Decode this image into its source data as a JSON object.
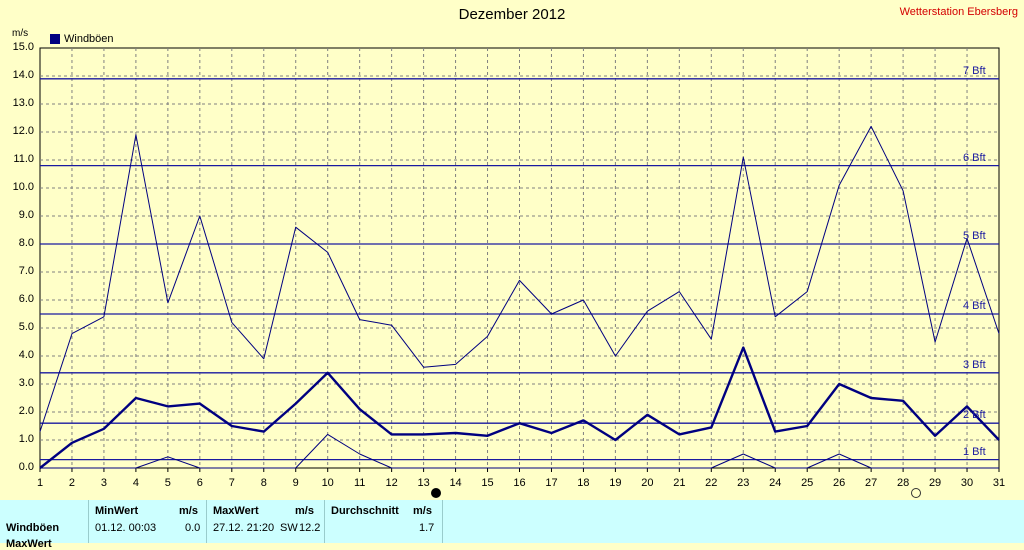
{
  "title": "Dezember 2012",
  "station": "Wetterstation Ebersberg",
  "unit_label": "m/s",
  "legend": "Windböen",
  "colors": {
    "main": "#000080",
    "grid": "#808080",
    "background": "#ffffc8",
    "stats_bg": "#ccffff",
    "station": "#d40000"
  },
  "chart_data": {
    "type": "line",
    "x": [
      1,
      2,
      3,
      4,
      5,
      6,
      7,
      8,
      9,
      10,
      11,
      12,
      13,
      14,
      15,
      16,
      17,
      18,
      19,
      20,
      21,
      22,
      23,
      24,
      25,
      26,
      27,
      28,
      29,
      30,
      31
    ],
    "ylim": [
      0,
      15
    ],
    "yticks": [
      "0.0",
      "1.0",
      "2.0",
      "3.0",
      "4.0",
      "5.0",
      "6.0",
      "7.0",
      "8.0",
      "9.0",
      "10.0",
      "11.0",
      "12.0",
      "13.0",
      "14.0",
      "15.0"
    ],
    "grid": true,
    "legend_position": "top-left",
    "series": [
      {
        "name": "Windböen",
        "role": "avg",
        "values": [
          0.0,
          0.9,
          1.4,
          2.5,
          2.2,
          2.3,
          1.5,
          1.3,
          2.3,
          3.4,
          2.1,
          1.2,
          1.2,
          1.25,
          1.15,
          1.6,
          1.25,
          1.7,
          1.0,
          1.9,
          1.2,
          1.45,
          4.3,
          1.3,
          1.5,
          3.0,
          2.5,
          2.4,
          1.15,
          2.2,
          1.0
        ]
      },
      {
        "role": "max",
        "values": [
          1.3,
          4.8,
          5.4,
          11.9,
          5.9,
          9.0,
          5.2,
          3.9,
          8.6,
          7.7,
          5.3,
          5.1,
          3.6,
          3.7,
          4.7,
          6.7,
          5.5,
          6.0,
          4.0,
          5.6,
          6.3,
          4.6,
          11.1,
          5.4,
          6.3,
          10.1,
          12.2,
          9.9,
          4.5,
          8.2,
          4.8
        ]
      },
      {
        "role": "min",
        "values": [
          0,
          0,
          0,
          0,
          0.4,
          0,
          0,
          0,
          0,
          1.2,
          0.5,
          0,
          0,
          0,
          0,
          0,
          0,
          0,
          0,
          0,
          0,
          0,
          0.5,
          0,
          0,
          0.5,
          0,
          0,
          0,
          0,
          0
        ]
      }
    ],
    "beaufort_lines": [
      {
        "label": "1 Bft",
        "value": 0.3
      },
      {
        "label": "2 Bft",
        "value": 1.6
      },
      {
        "label": "3 Bft",
        "value": 3.4
      },
      {
        "label": "4 Bft",
        "value": 5.5
      },
      {
        "label": "5 Bft",
        "value": 8.0
      },
      {
        "label": "6 Bft",
        "value": 10.8
      },
      {
        "label": "7 Bft",
        "value": 13.9
      }
    ],
    "moon_phases": [
      {
        "day": 13.4,
        "phase": "new"
      },
      {
        "day": 28.4,
        "phase": "full"
      }
    ]
  },
  "stats": {
    "row_label": "Windböen",
    "row2_label": "MaxWert",
    "min_header": "MinWert",
    "min_unit": "m/s",
    "min_when": "01.12.  00:03",
    "min_value": "0.0",
    "max_header": "MaxWert",
    "max_unit": "m/s",
    "max_when": "27.12.  21:20",
    "max_dir": "SW",
    "max_value": "12.2",
    "avg_header": "Durchschnitt",
    "avg_unit": "m/s",
    "avg_value": "1.7"
  }
}
